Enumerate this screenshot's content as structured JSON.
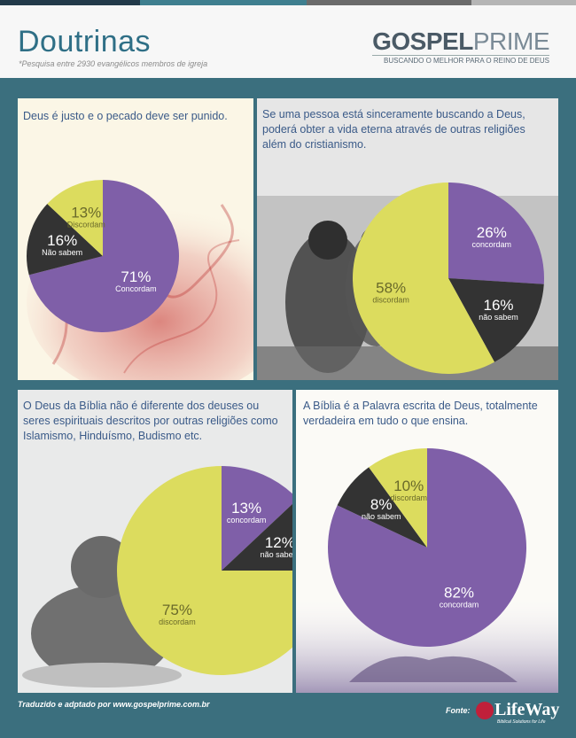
{
  "header": {
    "title": "Doutrinas",
    "subtitle": "*Pesquisa entre 2930 evangélicos membros de igreja",
    "logo_main_bold": "GOSPEL",
    "logo_main_light": "PRIME",
    "logo_tagline": "BUSCANDO O MELHOR PARA O REINO DE DEUS"
  },
  "colors": {
    "top_bars": [
      "#233a4a",
      "#3f7f8f",
      "#6b6b6b",
      "#b5b5b5"
    ],
    "frame": "#3b6f7e",
    "header_bg": "#f7f7f7",
    "title": "#2f6f86",
    "question_text": "#3a5a88",
    "concordam": "#7f5fa8",
    "discordam": "#dcdc5e",
    "nao_sabem": "#333333",
    "lifeway_red": "#c0203a"
  },
  "chart_data": [
    {
      "type": "pie",
      "title": "Deus é justo e o pecado deve ser punido.",
      "categories": [
        "Concordam",
        "Não sabem",
        "Discordam"
      ],
      "values": [
        71,
        16,
        13
      ],
      "labels": [
        "71%",
        "16%",
        "13%"
      ]
    },
    {
      "type": "pie",
      "title": "Se uma pessoa está sinceramente buscando a Deus, poderá obter a vida eterna através de outras religiões além do cristianismo.",
      "categories": [
        "concordam",
        "não sabem",
        "discordam"
      ],
      "values": [
        26,
        16,
        58
      ],
      "labels": [
        "26%",
        "16%",
        "58%"
      ]
    },
    {
      "type": "pie",
      "title": "O Deus da Bíblia não é diferente dos deuses ou seres espirituais descritos por outras religiões como Islamismo, Hinduísmo, Budismo etc.",
      "categories": [
        "concordam",
        "não sabem",
        "discordam"
      ],
      "values": [
        13,
        12,
        75
      ],
      "labels": [
        "13%",
        "12%",
        "75%"
      ]
    },
    {
      "type": "pie",
      "title": "A Bíblia é a Palavra escrita de Deus, totalmente verdadeira em tudo o que ensina.",
      "categories": [
        "concordam",
        "não sabem",
        "discordam"
      ],
      "values": [
        82,
        8,
        10
      ],
      "labels": [
        "82%",
        "8%",
        "10%"
      ]
    }
  ],
  "footer": {
    "credit": "Traduzido e adptado por www.gospelprime.com.br",
    "source_label": "Fonte:",
    "source_name": "LifeWay",
    "source_tagline": "Biblical Solutions for Life"
  }
}
